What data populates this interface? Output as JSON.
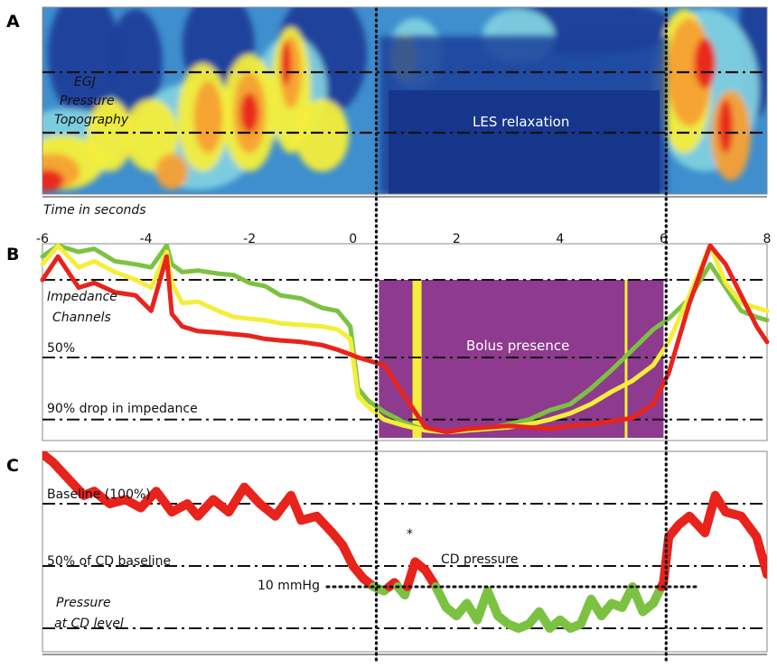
{
  "panels": {
    "a": {
      "letter": "A",
      "label_lines": [
        "EGJ",
        "Pressure",
        "Topography"
      ],
      "relaxation_label": "LES relaxation",
      "time_axis_label": "Time in seconds"
    },
    "b": {
      "letter": "B",
      "label_lines": [
        "Impedance",
        "Channels"
      ],
      "level_50_label": "50%",
      "level_90_label": "90% drop in impedance",
      "bolus_label": "Bolus presence"
    },
    "c": {
      "letter": "C",
      "baseline_label": "Baseline (100%)",
      "half_label": "50% of CD baseline",
      "threshold_label": "10 mmHg",
      "pressure_label": "CD pressure",
      "asterisk": "*",
      "level_label_lines": [
        "Pressure",
        "at CD level"
      ]
    }
  },
  "colors": {
    "red": "#e8231c",
    "yellow": "#f4ee3a",
    "green": "#7cc242",
    "bolus": "#8e3a8e",
    "topo_blue": "#1b3f9a"
  },
  "chart_data": {
    "type": "line",
    "x_axis": {
      "range": [
        -6,
        8
      ],
      "ticks": [
        -6,
        -4,
        -2,
        0,
        2,
        4,
        6,
        8
      ],
      "tick_labels": [
        "-6",
        "-4",
        "-2",
        "0",
        "2",
        "4",
        "6",
        "8"
      ],
      "xlabel": "Time in seconds"
    },
    "markers": {
      "les_relaxation_start": 0.45,
      "les_relaxation_end": 6.05
    },
    "impedance": {
      "y_unit": "percent of baseline impedance",
      "reference_levels": [
        100,
        50,
        10
      ],
      "bolus_presence": [
        0.5,
        6.0
      ],
      "series": [
        {
          "color": "green",
          "x": [
            -6,
            -5.7,
            -5.3,
            -5,
            -4.6,
            -4.2,
            -3.9,
            -3.6,
            -3.5,
            -3.3,
            -3,
            -2.6,
            -2.3,
            -2,
            -1.7,
            -1.4,
            -1,
            -0.6,
            -0.3,
            -0.05,
            0.1,
            0.3,
            0.6,
            1,
            1.4,
            1.8,
            2.2,
            2.6,
            3,
            3.4,
            3.8,
            4.2,
            4.6,
            5,
            5.4,
            5.8,
            6.1,
            6.5,
            6.9,
            7.2,
            7.5,
            7.8,
            8
          ],
          "y": [
            115,
            130,
            118,
            120,
            112,
            110,
            108,
            125,
            110,
            105,
            106,
            104,
            103,
            98,
            96,
            90,
            88,
            82,
            80,
            70,
            30,
            22,
            15,
            8,
            3,
            2,
            3,
            4,
            7,
            10,
            16,
            20,
            30,
            42,
            55,
            68,
            75,
            88,
            110,
            95,
            80,
            76,
            74
          ]
        },
        {
          "color": "yellow",
          "x": [
            -6,
            -5.7,
            -5.3,
            -5,
            -4.6,
            -4.2,
            -3.9,
            -3.6,
            -3.5,
            -3.3,
            -3,
            -2.6,
            -2.3,
            -2,
            -1.7,
            -1.4,
            -1,
            -0.6,
            -0.3,
            -0.05,
            0.1,
            0.3,
            0.6,
            1,
            1.4,
            1.8,
            2.2,
            2.6,
            3,
            3.4,
            3.8,
            4.2,
            4.6,
            5,
            5.4,
            5.8,
            6.1,
            6.5,
            6.9,
            7.2,
            7.5,
            7.8,
            8
          ],
          "y": [
            110,
            122,
            108,
            112,
            105,
            100,
            95,
            118,
            98,
            85,
            86,
            80,
            76,
            75,
            74,
            72,
            71,
            70,
            68,
            62,
            25,
            18,
            10,
            6,
            3,
            2,
            3,
            4,
            5,
            7,
            10,
            14,
            20,
            28,
            35,
            45,
            60,
            90,
            125,
            98,
            85,
            82,
            80
          ]
        },
        {
          "color": "red",
          "x": [
            -6,
            -5.7,
            -5.3,
            -5,
            -4.6,
            -4.2,
            -3.9,
            -3.6,
            -3.5,
            -3.3,
            -3,
            -2.6,
            -2.3,
            -2,
            -1.7,
            -1.4,
            -1,
            -0.6,
            -0.3,
            -0.05,
            0.1,
            0.3,
            0.6,
            1,
            1.4,
            1.8,
            2.2,
            2.6,
            3,
            3.4,
            3.8,
            4.2,
            4.6,
            5,
            5.4,
            5.8,
            6.1,
            6.5,
            6.9,
            7.2,
            7.5,
            7.8,
            8
          ],
          "y": [
            100,
            115,
            95,
            98,
            92,
            90,
            80,
            115,
            78,
            70,
            67,
            66,
            65,
            64,
            62,
            61,
            60,
            58,
            55,
            52,
            50,
            48,
            45,
            25,
            5,
            2,
            4,
            5,
            6,
            5,
            4,
            6,
            7,
            9,
            11,
            20,
            40,
            85,
            130,
            110,
            90,
            70,
            60
          ]
        }
      ]
    },
    "cd_pressure": {
      "y_unit": "mmHg",
      "baseline_label": "Baseline (100%)",
      "half_label": "50% of CD baseline",
      "threshold_mmHg": 10,
      "label": "CD pressure",
      "x": [
        -6,
        -5.8,
        -5.5,
        -5.2,
        -5,
        -4.7,
        -4.4,
        -4.1,
        -3.8,
        -3.5,
        -3.2,
        -3,
        -2.7,
        -2.4,
        -2.1,
        -1.8,
        -1.5,
        -1.2,
        -1,
        -0.7,
        -0.4,
        -0.2,
        0,
        0.2,
        0.4,
        0.6,
        0.8,
        1,
        1.2,
        1.4,
        1.6,
        1.8,
        2,
        2.2,
        2.4,
        2.6,
        2.8,
        3,
        3.2,
        3.4,
        3.6,
        3.8,
        4,
        4.2,
        4.4,
        4.6,
        4.8,
        5,
        5.2,
        5.4,
        5.6,
        5.8,
        6,
        6.1,
        6.3,
        6.5,
        6.8,
        7,
        7.2,
        7.5,
        7.8,
        8
      ],
      "y": [
        42,
        40,
        36,
        32,
        33,
        30,
        31,
        29,
        33,
        28,
        30,
        27,
        31,
        28,
        34,
        30,
        27,
        32,
        26,
        27,
        23,
        20,
        15,
        12,
        10,
        9,
        11,
        8,
        16,
        14,
        10,
        5,
        3,
        6,
        2,
        9,
        3,
        1,
        0,
        1,
        4,
        0,
        2,
        0,
        1,
        7,
        3,
        6,
        5,
        10,
        4,
        6,
        11,
        22,
        25,
        27,
        23,
        32,
        28,
        27,
        22,
        13
      ],
      "threshold_crossings_x": [
        0.1,
        6.05
      ]
    }
  }
}
